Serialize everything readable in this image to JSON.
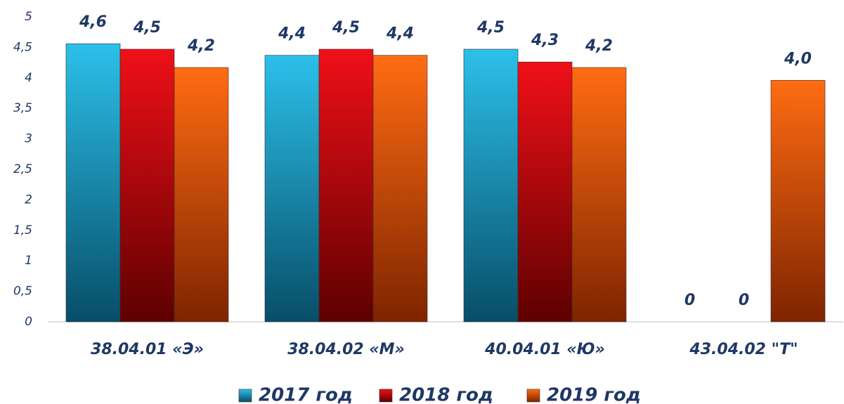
{
  "chart_data": {
    "type": "bar",
    "categories": [
      "38.04.01 «Э»",
      "38.04.02 «М»",
      "40.04.01 «Ю»",
      "43.04.02 \"Т\""
    ],
    "series": [
      {
        "name": "2017 год",
        "color": "#1fa6d0",
        "values": [
          4.56,
          4.37,
          4.47,
          0
        ],
        "value_labels": [
          "4,6",
          "4,4",
          "4,5",
          "0"
        ]
      },
      {
        "name": "2018 год",
        "color": "#d40000",
        "values": [
          4.47,
          4.47,
          4.26,
          0
        ],
        "value_labels": [
          "4,5",
          "4,5",
          "4,3",
          "0"
        ]
      },
      {
        "name": "2019 год",
        "color": "#f05a00",
        "values": [
          4.17,
          4.37,
          4.17,
          3.96
        ],
        "value_labels": [
          "4,2",
          "4,4",
          "4,2",
          "4,0"
        ]
      }
    ],
    "ylim": [
      0,
      5
    ],
    "yticks": [
      0,
      {
        "value": 0.5,
        "label": "0,5"
      },
      1,
      {
        "value": 1.5,
        "label": "1,5"
      },
      2,
      {
        "value": 2.5,
        "label": "2,5"
      },
      3,
      {
        "value": 3.5,
        "label": "3,5"
      },
      4,
      {
        "value": 4.5,
        "label": "4,5"
      },
      5
    ],
    "legend": "bottom",
    "grid": false
  }
}
